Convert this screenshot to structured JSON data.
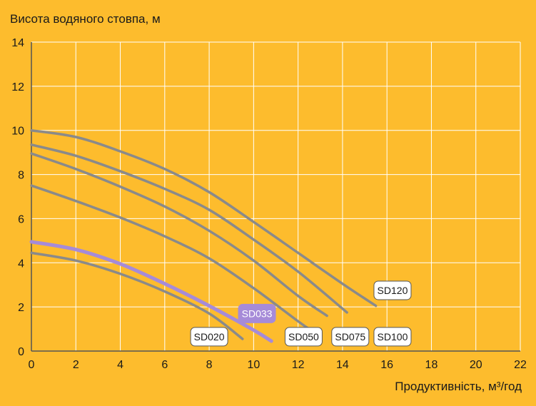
{
  "chart_data": {
    "type": "line",
    "ylabel": "Висота водяного стовпа, м",
    "xlabel": "Продуктивність, м³/год",
    "xlim": [
      0,
      22
    ],
    "ylim": [
      0,
      14
    ],
    "x_ticks": [
      0,
      2,
      4,
      6,
      8,
      10,
      12,
      14,
      16,
      18,
      20,
      22
    ],
    "y_ticks": [
      0,
      2,
      4,
      6,
      8,
      10,
      12,
      14
    ],
    "grid": true,
    "colors": {
      "background": "#FDBC2D",
      "grid": "#ffffff",
      "series_default": "#8a8a8a",
      "series_highlight": "#A68BD8",
      "axis": "#555555"
    },
    "series": [
      {
        "name": "SD020",
        "highlight": false,
        "points": [
          [
            0,
            4.45
          ],
          [
            2,
            4.1
          ],
          [
            4,
            3.5
          ],
          [
            6,
            2.7
          ],
          [
            8,
            1.7
          ],
          [
            9.5,
            0.55
          ]
        ]
      },
      {
        "name": "SD033",
        "highlight": true,
        "points": [
          [
            0,
            4.95
          ],
          [
            2,
            4.6
          ],
          [
            4,
            3.95
          ],
          [
            6,
            3.05
          ],
          [
            8,
            2.05
          ],
          [
            10,
            0.95
          ],
          [
            10.8,
            0.45
          ]
        ]
      },
      {
        "name": "SD050",
        "highlight": false,
        "points": [
          [
            0,
            7.5
          ],
          [
            2,
            6.8
          ],
          [
            4,
            6.05
          ],
          [
            6,
            5.2
          ],
          [
            8,
            4.2
          ],
          [
            10,
            2.85
          ],
          [
            12,
            1.35
          ],
          [
            12.5,
            1.0
          ]
        ]
      },
      {
        "name": "SD075",
        "highlight": false,
        "points": [
          [
            0,
            8.95
          ],
          [
            2,
            8.25
          ],
          [
            4,
            7.45
          ],
          [
            6,
            6.55
          ],
          [
            8,
            5.45
          ],
          [
            10,
            4.1
          ],
          [
            12,
            2.5
          ],
          [
            13.3,
            1.6
          ]
        ]
      },
      {
        "name": "SD100",
        "highlight": false,
        "points": [
          [
            0,
            9.35
          ],
          [
            2,
            8.85
          ],
          [
            4,
            8.15
          ],
          [
            6,
            7.35
          ],
          [
            8,
            6.4
          ],
          [
            10,
            5.05
          ],
          [
            12,
            3.6
          ],
          [
            14.2,
            1.75
          ]
        ]
      },
      {
        "name": "SD120",
        "highlight": false,
        "points": [
          [
            0,
            10.0
          ],
          [
            2,
            9.7
          ],
          [
            4,
            9.05
          ],
          [
            6,
            8.25
          ],
          [
            8,
            7.2
          ],
          [
            10,
            5.85
          ],
          [
            12,
            4.45
          ],
          [
            14,
            3.05
          ],
          [
            15.5,
            2.05
          ]
        ]
      }
    ],
    "labels": [
      {
        "text": "SD020",
        "x": 8.0,
        "y": 0.65,
        "highlight": false
      },
      {
        "text": "SD033",
        "x": 10.15,
        "y": 1.7,
        "highlight": true
      },
      {
        "text": "SD050",
        "x": 12.25,
        "y": 0.65,
        "highlight": false
      },
      {
        "text": "SD075",
        "x": 14.35,
        "y": 0.65,
        "highlight": false
      },
      {
        "text": "SD100",
        "x": 16.25,
        "y": 0.65,
        "highlight": false
      },
      {
        "text": "SD120",
        "x": 16.25,
        "y": 2.75,
        "highlight": false
      }
    ]
  }
}
